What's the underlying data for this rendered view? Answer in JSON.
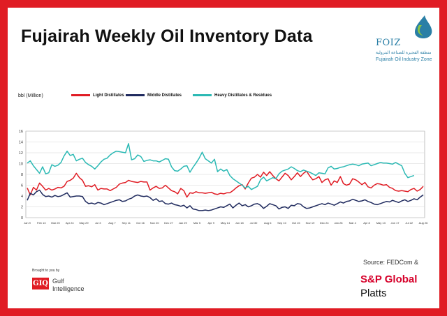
{
  "title": "Fujairah Weekly Oil Inventory Data",
  "logo": {
    "name": "FOIZ",
    "arabic": "منطقة الفجيرة للصناعة البترولية",
    "english": "Fujairah Oil Industry Zone"
  },
  "credit": {
    "brought_by": "Brought to you by",
    "gi_mark": "GIQ",
    "gi_line1": "Gulf",
    "gi_line2": "Intelligence"
  },
  "source": {
    "text": "Source: FEDCom &",
    "brand1": "S&P Global",
    "brand2": "Platts"
  },
  "colors": {
    "background": "#e01c24",
    "light": "#e01c24",
    "middle": "#1f2a5e",
    "heavy": "#2bb9b4"
  },
  "chart_data": {
    "type": "line",
    "ylabel": "bbl (Million)",
    "ylim": [
      0,
      16
    ],
    "yticks": [
      0,
      2,
      4,
      6,
      8,
      10,
      12,
      14,
      16
    ],
    "grid": true,
    "legend_position": "top",
    "x_tick_labels": [
      "Jan 9",
      "Feb 13",
      "Mar 20",
      "Apr 24",
      "May 29",
      "Jul 3",
      "Aug 7",
      "Sep 11",
      "Oct 16",
      "Nov 20",
      "Dec 27",
      "Jan 29",
      "Mar 5",
      "Apr 9",
      "May 14",
      "Jun 18",
      "Jul 30",
      "Aug 6",
      "Sep 10",
      "Oct 15",
      "Nov 19",
      "Dec 24",
      "Jan 28",
      "Mar 4",
      "Apr 8",
      "May 13",
      "Jun 17",
      "Jul 22",
      "Aug 26"
    ],
    "series": [
      {
        "name": "Light Distillates",
        "color": "#e01c24",
        "values": [
          5.5,
          4.2,
          5.6,
          5.1,
          6.4,
          5.8,
          5.1,
          5.4,
          5.1,
          5.3,
          5.6,
          5.5,
          5.8,
          6.7,
          6.9,
          7.3,
          8.2,
          7.4,
          6.9,
          5.8,
          5.9,
          5.7,
          6.1,
          5.1,
          5.4,
          5.3,
          5.3,
          5.0,
          5.3,
          5.6,
          6.2,
          6.4,
          6.5,
          6.9,
          6.7,
          6.6,
          6.5,
          6.7,
          6.6,
          6.6,
          5.1,
          5.5,
          5.8,
          5.4,
          5.5,
          6.0,
          5.5,
          5.0,
          4.8,
          4.4,
          5.4,
          5.0,
          3.8,
          4.6,
          4.5,
          4.8,
          4.6,
          4.6,
          4.5,
          4.6,
          4.7,
          4.4,
          4.3,
          4.5,
          4.4,
          4.6,
          4.6,
          5.0,
          5.5,
          5.9,
          6.1,
          5.3,
          6.4,
          7.3,
          7.5,
          8.0,
          7.5,
          8.4,
          7.8,
          8.5,
          7.8,
          7.2,
          6.8,
          7.5,
          8.2,
          7.8,
          7.0,
          7.6,
          8.3,
          7.6,
          8.2,
          8.6,
          7.7,
          7.0,
          7.2,
          7.6,
          6.5,
          7.0,
          7.2,
          6.0,
          6.8,
          6.5,
          7.6,
          6.3,
          6.0,
          6.2,
          7.2,
          7.0,
          6.6,
          6.1,
          6.5,
          5.7,
          5.5,
          6.0,
          6.3,
          6.2,
          6.0,
          6.1,
          5.6,
          5.4,
          5.0,
          4.9,
          5.0,
          4.9,
          4.8,
          5.2,
          5.4,
          4.9,
          5.2,
          5.8
        ]
      },
      {
        "name": "Middle Distillates",
        "color": "#1f2a5e",
        "values": [
          3.2,
          4.5,
          4.2,
          4.8,
          5.1,
          4.3,
          3.9,
          4.0,
          3.8,
          4.1,
          3.9,
          4.0,
          4.3,
          4.6,
          3.8,
          3.9,
          4.0,
          4.0,
          3.9,
          3.0,
          2.6,
          2.7,
          2.5,
          2.8,
          2.7,
          2.4,
          2.6,
          2.8,
          3.0,
          3.2,
          3.3,
          3.0,
          3.1,
          3.4,
          3.6,
          4.0,
          4.2,
          4.0,
          3.9,
          4.0,
          3.7,
          3.2,
          3.5,
          3.0,
          3.1,
          2.6,
          2.5,
          2.7,
          2.4,
          2.3,
          2.1,
          2.3,
          1.8,
          2.2,
          1.6,
          1.5,
          1.3,
          1.3,
          1.4,
          1.3,
          1.4,
          1.6,
          1.8,
          2.0,
          1.9,
          2.2,
          2.5,
          1.8,
          2.3,
          2.7,
          2.2,
          2.4,
          2.0,
          2.2,
          2.5,
          2.6,
          2.3,
          1.7,
          2.1,
          2.6,
          2.4,
          2.2,
          1.6,
          1.9,
          2.0,
          1.7,
          2.3,
          2.2,
          2.6,
          2.5,
          2.0,
          1.7,
          1.8,
          2.0,
          2.2,
          2.4,
          2.6,
          2.4,
          2.7,
          2.5,
          2.3,
          2.6,
          2.9,
          2.7,
          3.0,
          3.1,
          3.4,
          3.2,
          3.0,
          3.1,
          3.3,
          3.0,
          2.8,
          2.5,
          2.4,
          2.6,
          2.8,
          3.0,
          2.9,
          3.2,
          3.0,
          2.8,
          3.1,
          3.3,
          3.0,
          3.2,
          3.5,
          3.3,
          3.8,
          4.2
        ]
      },
      {
        "name": "Heavy Distillates & Residues",
        "color": "#2bb9b4",
        "values": [
          10.1,
          10.5,
          9.6,
          8.9,
          8.2,
          9.4,
          8.1,
          8.3,
          9.8,
          9.5,
          9.7,
          10.2,
          11.4,
          12.3,
          11.5,
          11.7,
          10.5,
          10.8,
          11.0,
          10.2,
          9.8,
          9.5,
          9.0,
          9.6,
          10.3,
          10.8,
          11.0,
          11.6,
          12.0,
          12.3,
          12.2,
          12.1,
          12.0,
          13.7,
          10.7,
          10.9,
          11.6,
          11.3,
          10.4,
          10.6,
          10.7,
          10.5,
          10.5,
          10.3,
          10.6,
          10.9,
          10.8,
          9.4,
          8.7,
          8.6,
          9.0,
          9.5,
          9.6,
          8.4,
          9.3,
          10.1,
          11.0,
          12.1,
          10.9,
          10.5,
          10.1,
          10.8,
          8.5,
          9.0,
          8.6,
          8.9,
          7.8,
          7.2,
          6.8,
          6.4,
          6.0,
          5.5,
          5.8,
          5.2,
          5.5,
          5.8,
          7.0,
          7.5,
          6.8,
          7.1,
          7.4,
          7.2,
          8.1,
          8.6,
          8.8,
          9.0,
          9.4,
          9.1,
          8.7,
          8.5,
          8.8,
          8.6,
          8.4,
          8.1,
          7.8,
          8.3,
          8.2,
          8.1,
          9.2,
          9.5,
          9.0,
          9.1,
          9.3,
          9.4,
          9.6,
          9.8,
          9.9,
          9.8,
          9.6,
          9.9,
          10.0,
          10.1,
          9.6,
          9.8,
          10.0,
          10.2,
          10.1,
          10.1,
          10.0,
          9.9,
          10.2,
          9.9,
          9.6,
          8.2,
          7.4,
          7.6,
          7.8
        ]
      }
    ]
  }
}
